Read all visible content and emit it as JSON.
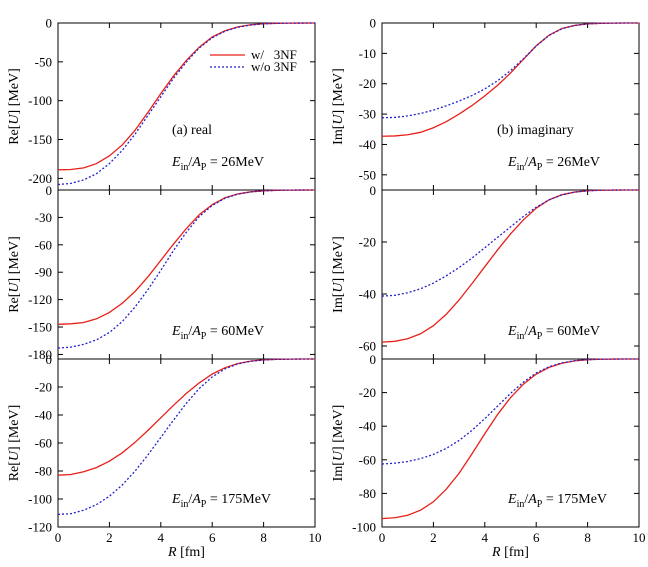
{
  "chart_data": {
    "type": "line",
    "figure": {
      "x_label": "R [fm]",
      "x_ticks": [
        0,
        2,
        4,
        6,
        8,
        10
      ],
      "legend": [
        {
          "label": "w/   3NF",
          "color": "#e8201a",
          "dash": "solid"
        },
        {
          "label": "w/o 3NF",
          "color": "#2222cc",
          "dash": "dotted"
        }
      ],
      "colors": {
        "with_3nf": "#e8201a",
        "without_3nf": "#2222cc",
        "axis": "#000000"
      }
    },
    "panels": [
      {
        "id": "re-26",
        "column": 0,
        "row": 0,
        "ylabel_pre": "Re[",
        "ylabel_var": "U",
        "ylabel_post": "] [MeV]",
        "ylim": [
          -215,
          0
        ],
        "yticks": [
          0,
          -50,
          -100,
          -150,
          -200
        ],
        "annotation": "(a) real",
        "energy": {
          "ein": "E",
          "ein_sub": "in",
          "sep": "/",
          "ap": "A",
          "ap_sub": "P",
          "value": " = 26MeV"
        },
        "legend": true,
        "series": [
          {
            "name": "w/ 3NF",
            "x": [
              0,
              0.5,
              1,
              1.5,
              2,
              2.5,
              3,
              3.5,
              4,
              4.5,
              5,
              5.5,
              6,
              6.5,
              7,
              7.5,
              8,
              8.5,
              9,
              9.5,
              10
            ],
            "y": [
              -189,
              -188.6,
              -186.5,
              -181,
              -171,
              -157,
              -138,
              -115,
              -91,
              -68,
              -48,
              -31,
              -18,
              -10,
              -5,
              -2.3,
              -1.0,
              -0.4,
              -0.15,
              -0.05,
              0
            ]
          },
          {
            "name": "w/o 3NF",
            "x": [
              0,
              0.5,
              1,
              1.5,
              2,
              2.5,
              3,
              3.5,
              4,
              4.5,
              5,
              5.5,
              6,
              6.5,
              7,
              7.5,
              8,
              8.5,
              9,
              9.5,
              10
            ],
            "y": [
              -208,
              -206.5,
              -202,
              -194,
              -181,
              -164,
              -143,
              -119,
              -95,
              -71,
              -50,
              -32,
              -19,
              -10.5,
              -5.5,
              -2.6,
              -1.1,
              -0.45,
              -0.15,
              -0.05,
              0
            ]
          }
        ]
      },
      {
        "id": "im-26",
        "column": 1,
        "row": 0,
        "ylabel_pre": "Im[",
        "ylabel_var": "U",
        "ylabel_post": "] [MeV]",
        "ylim": [
          -55,
          0
        ],
        "yticks": [
          0,
          -10,
          -20,
          -30,
          -40,
          -50
        ],
        "annotation": "(b) imaginary",
        "energy": {
          "ein": "E",
          "ein_sub": "in",
          "sep": "/",
          "ap": "A",
          "ap_sub": "P",
          "value": " = 26MeV"
        },
        "legend": false,
        "series": [
          {
            "name": "w/ 3NF",
            "x": [
              0,
              0.5,
              1,
              1.5,
              2,
              2.5,
              3,
              3.5,
              4,
              4.5,
              5,
              5.5,
              6,
              6.5,
              7,
              7.5,
              8,
              8.5,
              9,
              9.5,
              10
            ],
            "y": [
              -37.3,
              -37.2,
              -36.8,
              -36,
              -34.5,
              -32.5,
              -30,
              -27.2,
              -24,
              -20.5,
              -16.5,
              -12,
              -7.5,
              -4,
              -1.8,
              -0.8,
              -0.3,
              -0.1,
              -0.03,
              0,
              0
            ]
          },
          {
            "name": "w/o 3NF",
            "x": [
              0,
              0.5,
              1,
              1.5,
              2,
              2.5,
              3,
              3.5,
              4,
              4.5,
              5,
              5.5,
              6,
              6.5,
              7,
              7.5,
              8,
              8.5,
              9,
              9.5,
              10
            ],
            "y": [
              -31.2,
              -31.1,
              -30.6,
              -29.8,
              -28.7,
              -27.3,
              -25.7,
              -23.9,
              -21.7,
              -19,
              -15.7,
              -11.8,
              -7.6,
              -4.1,
              -1.9,
              -0.8,
              -0.3,
              -0.1,
              -0.03,
              0,
              0
            ]
          }
        ]
      },
      {
        "id": "re-60",
        "column": 0,
        "row": 1,
        "ylabel_pre": "Re[",
        "ylabel_var": "U",
        "ylabel_post": "] [MeV]",
        "ylim": [
          -185,
          0
        ],
        "yticks": [
          0,
          -30,
          -60,
          -90,
          -120,
          -150,
          -180
        ],
        "annotation": "",
        "energy": {
          "ein": "E",
          "ein_sub": "in",
          "sep": "/",
          "ap": "A",
          "ap_sub": "P",
          "value": " = 60MeV"
        },
        "legend": false,
        "series": [
          {
            "name": "w/ 3NF",
            "x": [
              0,
              0.5,
              1,
              1.5,
              2,
              2.5,
              3,
              3.5,
              4,
              4.5,
              5,
              5.5,
              6,
              6.5,
              7,
              7.5,
              8,
              8.5,
              9,
              9.5,
              10
            ],
            "y": [
              -147,
              -146.5,
              -145,
              -141,
              -134,
              -124,
              -111,
              -95,
              -77,
              -59,
              -42,
              -27,
              -16,
              -8.5,
              -4.3,
              -2,
              -0.9,
              -0.35,
              -0.12,
              -0.04,
              0
            ]
          },
          {
            "name": "w/o 3NF",
            "x": [
              0,
              0.5,
              1,
              1.5,
              2,
              2.5,
              3,
              3.5,
              4,
              4.5,
              5,
              5.5,
              6,
              6.5,
              7,
              7.5,
              8,
              8.5,
              9,
              9.5,
              10
            ],
            "y": [
              -173,
              -172,
              -169,
              -164,
              -156,
              -144,
              -128,
              -109,
              -88,
              -66,
              -46,
              -29,
              -17,
              -9,
              -4.5,
              -2.1,
              -0.9,
              -0.35,
              -0.12,
              -0.04,
              0
            ]
          }
        ]
      },
      {
        "id": "im-60",
        "column": 1,
        "row": 1,
        "ylabel_pre": "Im[",
        "ylabel_var": "U",
        "ylabel_post": "] [MeV]",
        "ylim": [
          -65,
          0
        ],
        "yticks": [
          0,
          -20,
          -40,
          -60
        ],
        "annotation": "",
        "energy": {
          "ein": "E",
          "ein_sub": "in",
          "sep": "/",
          "ap": "A",
          "ap_sub": "P",
          "value": " = 60MeV"
        },
        "legend": false,
        "series": [
          {
            "name": "w/ 3NF",
            "x": [
              0,
              0.5,
              1,
              1.5,
              2,
              2.5,
              3,
              3.5,
              4,
              4.5,
              5,
              5.5,
              6,
              6.5,
              7,
              7.5,
              8,
              8.5,
              9,
              9.5,
              10
            ],
            "y": [
              -58.5,
              -58.2,
              -57.2,
              -55.3,
              -52.2,
              -47.8,
              -42.3,
              -36,
              -29.5,
              -23,
              -16.9,
              -11.5,
              -7,
              -3.8,
              -1.8,
              -0.8,
              -0.3,
              -0.1,
              -0.03,
              0,
              0
            ]
          },
          {
            "name": "w/o 3NF",
            "x": [
              0,
              0.5,
              1,
              1.5,
              2,
              2.5,
              3,
              3.5,
              4,
              4.5,
              5,
              5.5,
              6,
              6.5,
              7,
              7.5,
              8,
              8.5,
              9,
              9.5,
              10
            ],
            "y": [
              -40.8,
              -40.5,
              -39.5,
              -38,
              -35.8,
              -33,
              -29.8,
              -26.2,
              -22.2,
              -18.2,
              -14.2,
              -10.2,
              -6.6,
              -3.8,
              -1.9,
              -0.8,
              -0.3,
              -0.1,
              -0.03,
              0,
              0
            ]
          }
        ]
      },
      {
        "id": "re-175",
        "column": 0,
        "row": 2,
        "ylabel_pre": "Re[",
        "ylabel_var": "U",
        "ylabel_post": "] [MeV]",
        "ylim": [
          -120,
          0
        ],
        "yticks": [
          0,
          -20,
          -40,
          -60,
          -80,
          -100,
          -120
        ],
        "annotation": "",
        "energy": {
          "ein": "E",
          "ein_sub": "in",
          "sep": "/",
          "ap": "A",
          "ap_sub": "P",
          "value": " = 175MeV"
        },
        "legend": false,
        "series": [
          {
            "name": "w/ 3NF",
            "x": [
              0,
              0.5,
              1,
              1.5,
              2,
              2.5,
              3,
              3.5,
              4,
              4.5,
              5,
              5.5,
              6,
              6.5,
              7,
              7.5,
              8,
              8.5,
              9,
              9.5,
              10
            ],
            "y": [
              -83,
              -82.5,
              -80.5,
              -77.5,
              -73,
              -67,
              -59.5,
              -51,
              -42,
              -33,
              -24.5,
              -17,
              -10.8,
              -6.2,
              -3.2,
              -1.5,
              -0.6,
              -0.25,
              -0.08,
              -0.02,
              0
            ]
          },
          {
            "name": "w/o 3NF",
            "x": [
              0,
              0.5,
              1,
              1.5,
              2,
              2.5,
              3,
              3.5,
              4,
              4.5,
              5,
              5.5,
              6,
              6.5,
              7,
              7.5,
              8,
              8.5,
              9,
              9.5,
              10
            ],
            "y": [
              -111,
              -110.5,
              -108,
              -104,
              -98,
              -90,
              -80,
              -68.5,
              -56,
              -43.5,
              -31.5,
              -21,
              -12.8,
              -7,
              -3.5,
              -1.6,
              -0.7,
              -0.27,
              -0.09,
              -0.02,
              0
            ]
          }
        ]
      },
      {
        "id": "im-175",
        "column": 1,
        "row": 2,
        "ylabel_pre": "Im[",
        "ylabel_var": "U",
        "ylabel_post": "] [MeV]",
        "ylim": [
          -100,
          0
        ],
        "yticks": [
          0,
          -20,
          -40,
          -60,
          -80,
          -100
        ],
        "annotation": "",
        "energy": {
          "ein": "E",
          "ein_sub": "in",
          "sep": "/",
          "ap": "A",
          "ap_sub": "P",
          "value": " = 175MeV"
        },
        "legend": false,
        "series": [
          {
            "name": "w/ 3NF",
            "x": [
              0,
              0.5,
              1,
              1.5,
              2,
              2.5,
              3,
              3.5,
              4,
              4.5,
              5,
              5.5,
              6,
              6.5,
              7,
              7.5,
              8,
              8.5,
              9,
              9.5,
              10
            ],
            "y": [
              -95,
              -94.5,
              -93,
              -90,
              -85,
              -77.5,
              -68,
              -56.5,
              -44.5,
              -33,
              -23,
              -15,
              -9,
              -5,
              -2.5,
              -1.1,
              -0.45,
              -0.15,
              -0.05,
              0,
              0
            ]
          },
          {
            "name": "w/o 3NF",
            "x": [
              0,
              0.5,
              1,
              1.5,
              2,
              2.5,
              3,
              3.5,
              4,
              4.5,
              5,
              5.5,
              6,
              6.5,
              7,
              7.5,
              8,
              8.5,
              9,
              9.5,
              10
            ],
            "y": [
              -62.5,
              -62,
              -61,
              -59.3,
              -56.8,
              -53.2,
              -48.5,
              -42.5,
              -35.5,
              -28,
              -20.5,
              -13.8,
              -8.3,
              -4.6,
              -2.3,
              -1.0,
              -0.4,
              -0.15,
              -0.05,
              0,
              0
            ]
          }
        ]
      }
    ]
  }
}
